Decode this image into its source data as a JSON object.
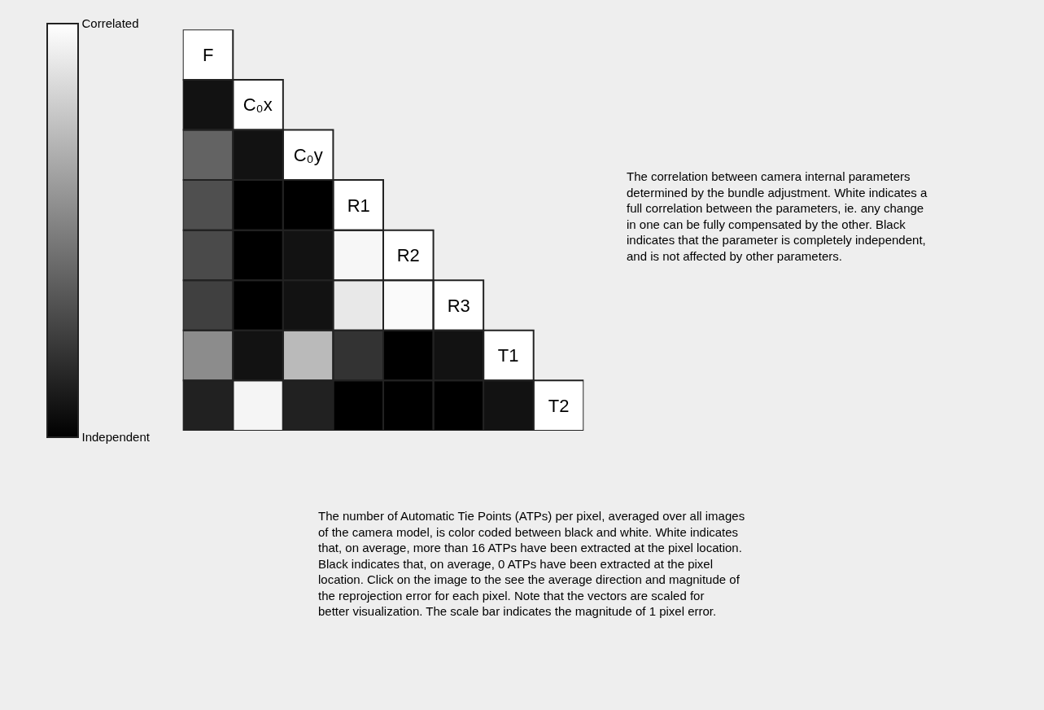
{
  "chart_data": {
    "type": "heatmap",
    "categories": [
      null,
      null,
      null,
      null,
      null,
      null,
      null,
      null
    ],
    "y_categories": [
      null,
      null,
      null,
      null,
      null,
      null,
      null,
      null
    ],
    "cells": [
      [
        1,
        null,
        null,
        null,
        null,
        null,
        null,
        null
      ],
      [
        0.07,
        1,
        null,
        null,
        null,
        null,
        null,
        null
      ],
      [
        0.39,
        0.07,
        1,
        null,
        null,
        null,
        null,
        null
      ],
      [
        0.31,
        0,
        0,
        1,
        null,
        null,
        null,
        null
      ],
      [
        0.29,
        0,
        0.07,
        0.97,
        1,
        null,
        null,
        null
      ],
      [
        0.25,
        0,
        0.07,
        0.91,
        0.98,
        1,
        null,
        null
      ],
      [
        0.55,
        0.07,
        0.73,
        0.2,
        0,
        0.07,
        1,
        null
      ],
      [
        0.13,
        0.96,
        0.13,
        0,
        0,
        0,
        0.07,
        1
      ]
    ],
    "cell_labels": [
      [
        "F",
        null,
        null,
        null,
        null,
        null,
        null,
        null
      ],
      [
        null,
        "C₀x",
        null,
        null,
        null,
        null,
        null,
        null
      ],
      [
        null,
        null,
        "C₀y",
        null,
        null,
        null,
        null,
        null
      ],
      [
        null,
        null,
        null,
        "R1",
        null,
        null,
        null,
        null
      ],
      [
        null,
        null,
        null,
        null,
        "R2",
        null,
        null,
        null
      ],
      [
        null,
        null,
        null,
        null,
        null,
        "R3",
        null,
        null
      ],
      [
        null,
        null,
        null,
        null,
        null,
        null,
        "T1",
        null
      ],
      [
        null,
        null,
        null,
        null,
        null,
        null,
        null,
        "T2"
      ]
    ],
    "clim": [
      0,
      1
    ],
    "cticks": [
      {
        "value": 1,
        "label": "Correlated"
      },
      {
        "value": 0,
        "label": "Independent"
      }
    ],
    "annotations": [
      "The correlation between camera internal parameters determined by the bundle adjustment. White indicates a full correlation between the parameters, ie. any change in one can be fully compensated by the other. Black indicates that the parameter is completely independent, and is not affected by other parameters.",
      "The number of Automatic Tie Points (ATPs) per pixel, averaged over all images of the camera model, is color coded between black and white. White indicates that, on average, more than 16 ATPs have been extracted at the pixel location. Black indicates that, on average, 0 ATPs have been extracted at the pixel location. Click on the image to the see the average direction and magnitude of the reprojection error for each pixel. Note that the vectors are scaled for better visualization. The scale bar indicates the magnitude of 1 pixel error."
    ]
  }
}
